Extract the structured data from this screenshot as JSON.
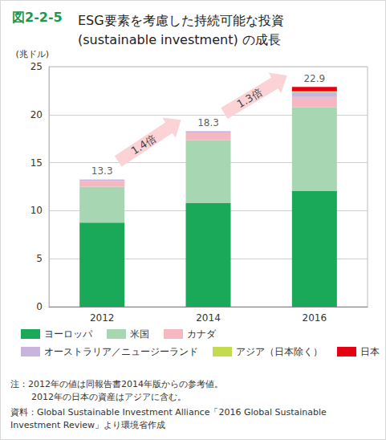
{
  "chart_data": {
    "type": "bar",
    "figure_label": "図2-2-5",
    "title": "ESG要素を考慮した持続可能な投資\n(sustainable investment) の成長",
    "y_label": "(兆ドル)",
    "categories": [
      "2012",
      "2014",
      "2016"
    ],
    "stacked": true,
    "series": [
      {
        "name": "ヨーロッパ",
        "color": "#1aa859",
        "values": [
          8.76,
          10.78,
          12.04
        ]
      },
      {
        "name": "米国",
        "color": "#a6d7b2",
        "values": [
          3.74,
          6.57,
          8.72
        ]
      },
      {
        "name": "カナダ",
        "color": "#f5b7c1",
        "values": [
          0.59,
          0.73,
          1.09
        ]
      },
      {
        "name": "オーストラリア／ニュージーランド",
        "color": "#c9b5dc",
        "values": [
          0.13,
          0.15,
          0.52
        ]
      },
      {
        "name": "アジア（日本除く）",
        "color": "#c5db4f",
        "values": [
          0.04,
          0.05,
          0.05
        ]
      },
      {
        "name": "日本",
        "color": "#e60012",
        "values": [
          null,
          0.01,
          0.47
        ]
      }
    ],
    "totals": [
      13.3,
      18.3,
      22.9
    ],
    "annotations": [
      "1.4倍",
      "1.3倍"
    ],
    "ylim": [
      0,
      25
    ],
    "yticks": [
      0,
      5,
      10,
      15,
      20,
      25
    ],
    "grid": true,
    "legend": "bottom",
    "notes": [
      "注：2012年の値は同報告書2014年版からの参考値。",
      "2012年の日本の資産はアジアに含む。"
    ],
    "source": "資料：Global Sustainable Investment Alliance「2016 Global Sustainable\nInvestment Review」より環境省作成"
  }
}
